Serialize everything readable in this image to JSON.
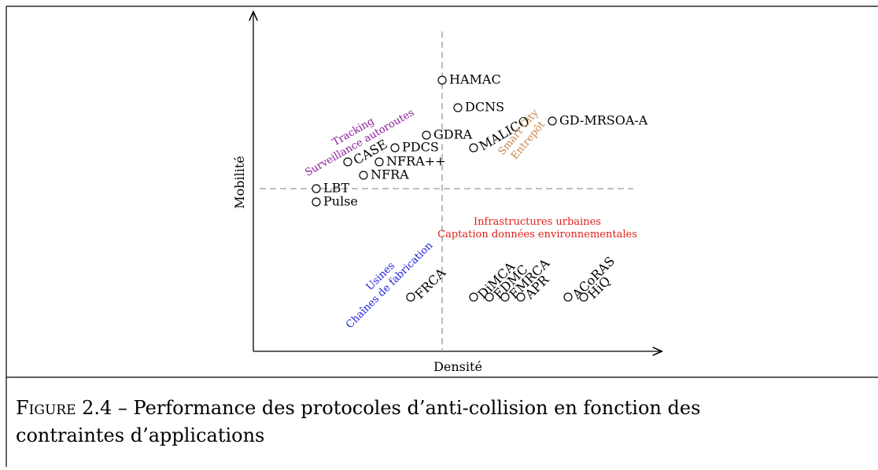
{
  "figure": {
    "axes": {
      "y_label": "Mobilité",
      "x_label": "Densité"
    },
    "nodes": [
      {
        "label": "HAMAC"
      },
      {
        "label": "DCNS"
      },
      {
        "label": "GD-MRSOA-A"
      },
      {
        "label": "MALICO"
      },
      {
        "label": "GDRA"
      },
      {
        "label": "PDCS"
      },
      {
        "label": "CASE"
      },
      {
        "label": "NFRA++"
      },
      {
        "label": "NFRA"
      },
      {
        "label": "LBT"
      },
      {
        "label": "Pulse"
      },
      {
        "label": "FRCA"
      },
      {
        "label": "DiMCA"
      },
      {
        "label": "EDMC"
      },
      {
        "label": "EMRCA"
      },
      {
        "label": "APR"
      },
      {
        "label": "ACoRAS"
      },
      {
        "label": "HiQ"
      }
    ],
    "regions": [
      {
        "lines": [
          "Tracking",
          "Surveillance autoroutes"
        ]
      },
      {
        "lines": [
          "Smart City",
          "Entrepôt"
        ]
      },
      {
        "lines": [
          "Infrastructures urbaines",
          "Captation données environnementales"
        ]
      },
      {
        "lines": [
          "Usines",
          "Chaînes de fabrication"
        ]
      }
    ],
    "caption": {
      "prefix": "Figure 2.4",
      "line1": "– Performance des protocoles d’anti-collision en fonction des",
      "line2": "contraintes d’applications"
    }
  }
}
